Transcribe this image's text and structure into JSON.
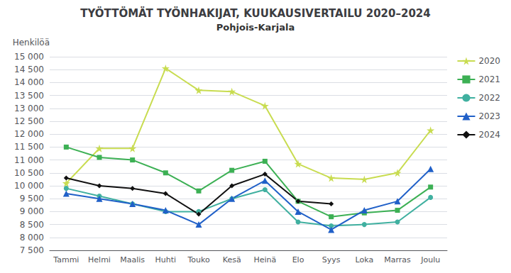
{
  "chart_data": {
    "type": "line",
    "title": "TYÖTTÖMÄT TYÖNHAKIJAT, KUUKAUSIVERTAILU 2020–2024",
    "subtitle": "Pohjois-Karjala",
    "ylabel": "Henkilöä",
    "categories": [
      "Tammi",
      "Helmi",
      "Maalis",
      "Huhti",
      "Touko",
      "Kesä",
      "Heinä",
      "Elo",
      "Syys",
      "Loka",
      "Marras",
      "Joulu"
    ],
    "series": [
      {
        "name": "2020",
        "color": "#c8dc50",
        "marker": "star",
        "values": [
          10100,
          11450,
          11450,
          14550,
          13700,
          13650,
          13100,
          10850,
          10300,
          10250,
          10500,
          12150
        ]
      },
      {
        "name": "2021",
        "color": "#3cb054",
        "marker": "square",
        "values": [
          11500,
          11100,
          11000,
          10500,
          9800,
          10600,
          10950,
          9400,
          8800,
          8950,
          9050,
          9950
        ]
      },
      {
        "name": "2022",
        "color": "#40b0a0",
        "marker": "circle",
        "values": [
          9900,
          9600,
          9300,
          9000,
          9000,
          9500,
          9850,
          8600,
          8450,
          8500,
          8600,
          9550
        ]
      },
      {
        "name": "2023",
        "color": "#2060c8",
        "marker": "triangle",
        "values": [
          9700,
          9500,
          9300,
          9050,
          8500,
          9500,
          10200,
          9000,
          8300,
          9050,
          9400,
          10650
        ]
      },
      {
        "name": "2024",
        "color": "#101010",
        "marker": "diamond",
        "values": [
          10300,
          10000,
          9900,
          9700,
          8900,
          10000,
          10450,
          9400,
          9300,
          null,
          null,
          null
        ]
      }
    ],
    "ylim": [
      7500,
      15000
    ],
    "yticks": [
      {
        "value": 7500,
        "label": "7 500"
      },
      {
        "value": 8000,
        "label": "8 000"
      },
      {
        "value": 8500,
        "label": "8 500"
      },
      {
        "value": 9000,
        "label": "9 000"
      },
      {
        "value": 9500,
        "label": "9 500"
      },
      {
        "value": 10000,
        "label": "10 000"
      },
      {
        "value": 10500,
        "label": "10 500"
      },
      {
        "value": 11000,
        "label": "11 000"
      },
      {
        "value": 11500,
        "label": "11 500"
      },
      {
        "value": 12000,
        "label": "12 000"
      },
      {
        "value": 12500,
        "label": "12 500"
      },
      {
        "value": 13000,
        "label": "13 000"
      },
      {
        "value": 13500,
        "label": "13 500"
      },
      {
        "value": 14000,
        "label": "14 000"
      },
      {
        "value": 14500,
        "label": "14 500"
      },
      {
        "value": 15000,
        "label": "15 000"
      }
    ],
    "grid": true,
    "legend": "right"
  }
}
